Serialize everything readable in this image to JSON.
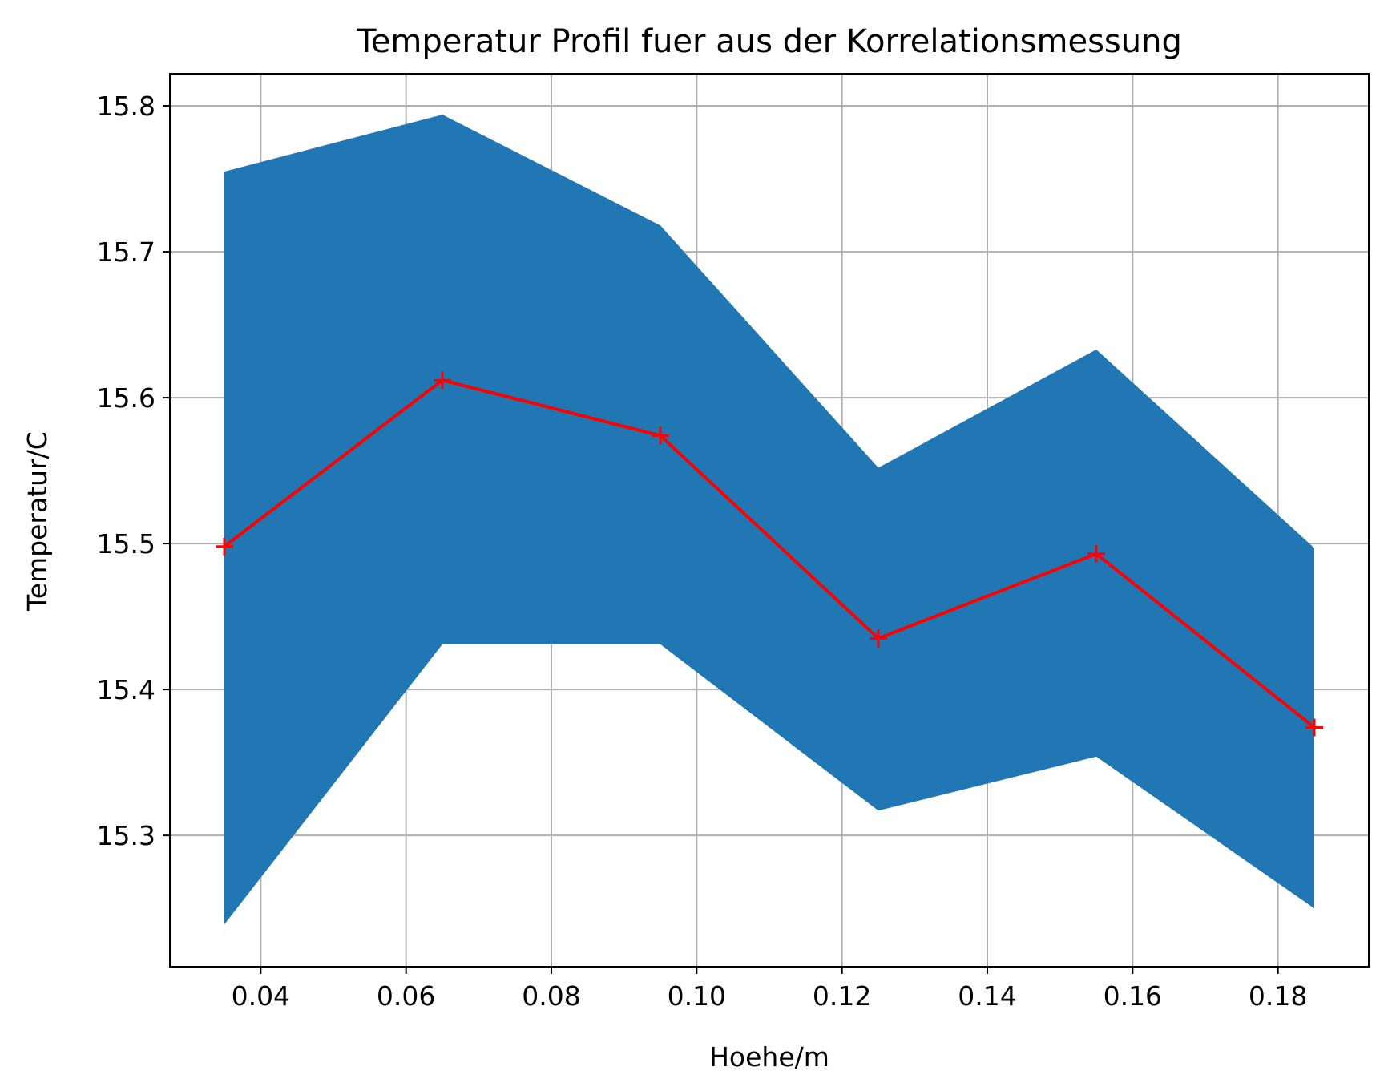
{
  "chart_data": {
    "type": "line",
    "title": "Temperatur Profil fuer aus der Korrelationsmessung",
    "xlabel": "Hoehe/m",
    "ylabel": "Temperatur/C",
    "xlim": [
      0.0275,
      0.1925
    ],
    "ylim": [
      15.21,
      15.822
    ],
    "grid": true,
    "x_ticks": [
      0.04,
      0.06,
      0.08,
      0.1,
      0.12,
      0.14,
      0.16,
      0.18
    ],
    "x_tick_labels": [
      "0.04",
      "0.06",
      "0.08",
      "0.10",
      "0.12",
      "0.14",
      "0.16",
      "0.18"
    ],
    "y_ticks": [
      15.3,
      15.4,
      15.5,
      15.6,
      15.7,
      15.8
    ],
    "y_tick_labels": [
      "15.3",
      "15.4",
      "15.5",
      "15.6",
      "15.7",
      "15.8"
    ],
    "series": [
      {
        "x": [
          0.035,
          0.065,
          0.095,
          0.125,
          0.155,
          0.185
        ],
        "values": [
          15.498,
          15.612,
          15.574,
          15.435,
          15.493,
          15.374
        ],
        "color": "#ff0000",
        "marker": "+"
      }
    ],
    "band": {
      "x": [
        0.035,
        0.065,
        0.095,
        0.125,
        0.155,
        0.185
      ],
      "upper": [
        15.755,
        15.794,
        15.718,
        15.552,
        15.633,
        15.497
      ],
      "lower": [
        15.239,
        15.431,
        15.431,
        15.317,
        15.354,
        15.25
      ],
      "color": "#2077b4"
    },
    "colors": {
      "axes": "#000000",
      "grid": "#b0b0b0",
      "background": "#ffffff"
    }
  }
}
